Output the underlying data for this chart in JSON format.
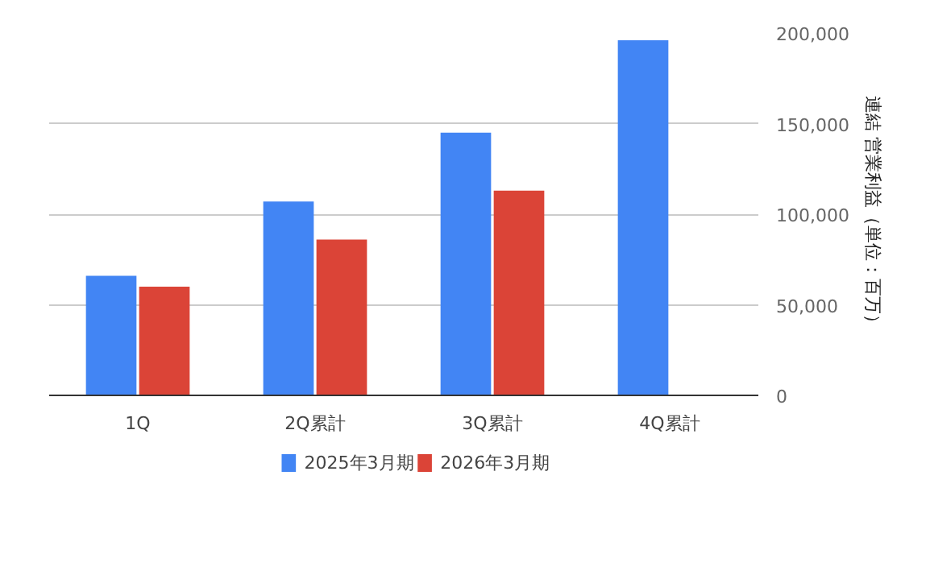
{
  "chart_data": {
    "type": "bar",
    "ylabel": "連結 営業利益（単位：百万）",
    "categories": [
      "1Q",
      "2Q累計",
      "3Q累計",
      "4Q累計"
    ],
    "series": [
      {
        "name": "2025年3月期",
        "color": "#4285f4",
        "values": [
          66000,
          107000,
          145000,
          196000
        ]
      },
      {
        "name": "2026年3月期",
        "color": "#db4437",
        "values": [
          60000,
          86000,
          113000,
          null
        ]
      }
    ],
    "ylim": [
      0,
      200000
    ],
    "yticks": [
      {
        "value": 0,
        "label": "0"
      },
      {
        "value": 50000,
        "label": "50,000"
      },
      {
        "value": 100000,
        "label": "100,000"
      },
      {
        "value": 150000,
        "label": "150,000"
      },
      {
        "value": 200000,
        "label": "200,000"
      }
    ],
    "grid": "y",
    "legend": "bottom"
  }
}
